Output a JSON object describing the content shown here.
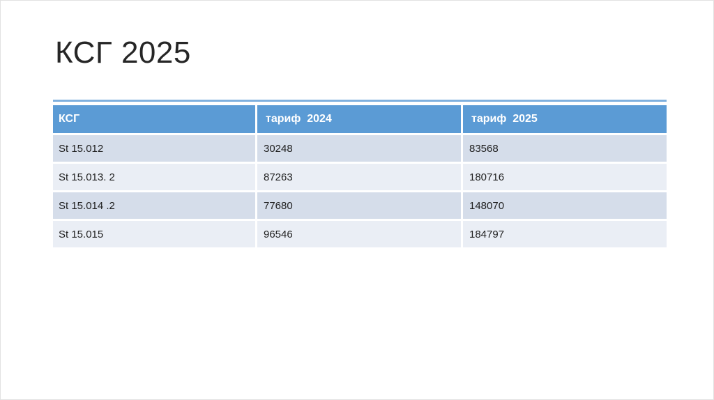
{
  "slide": {
    "title": "КСГ 2025"
  },
  "table": {
    "headers": [
      "КСГ",
      "тариф  2024",
      "тариф  2025"
    ],
    "rows": [
      [
        "St 15.012",
        "30248",
        "83568"
      ],
      [
        "St 15.013. 2",
        "87263",
        "180716"
      ],
      [
        "St 15.014 .2",
        "77680",
        "148070"
      ],
      [
        "St 15.015",
        "96546",
        "184797"
      ]
    ],
    "colors": {
      "header_bg": "#5B9BD5",
      "header_text": "#FFFFFF",
      "band_dark": "#D5DDEA",
      "band_light": "#EAEEF5",
      "top_border": "#7FB0DE",
      "body_text": "#1F1F1F",
      "title_color": "#262626"
    }
  }
}
